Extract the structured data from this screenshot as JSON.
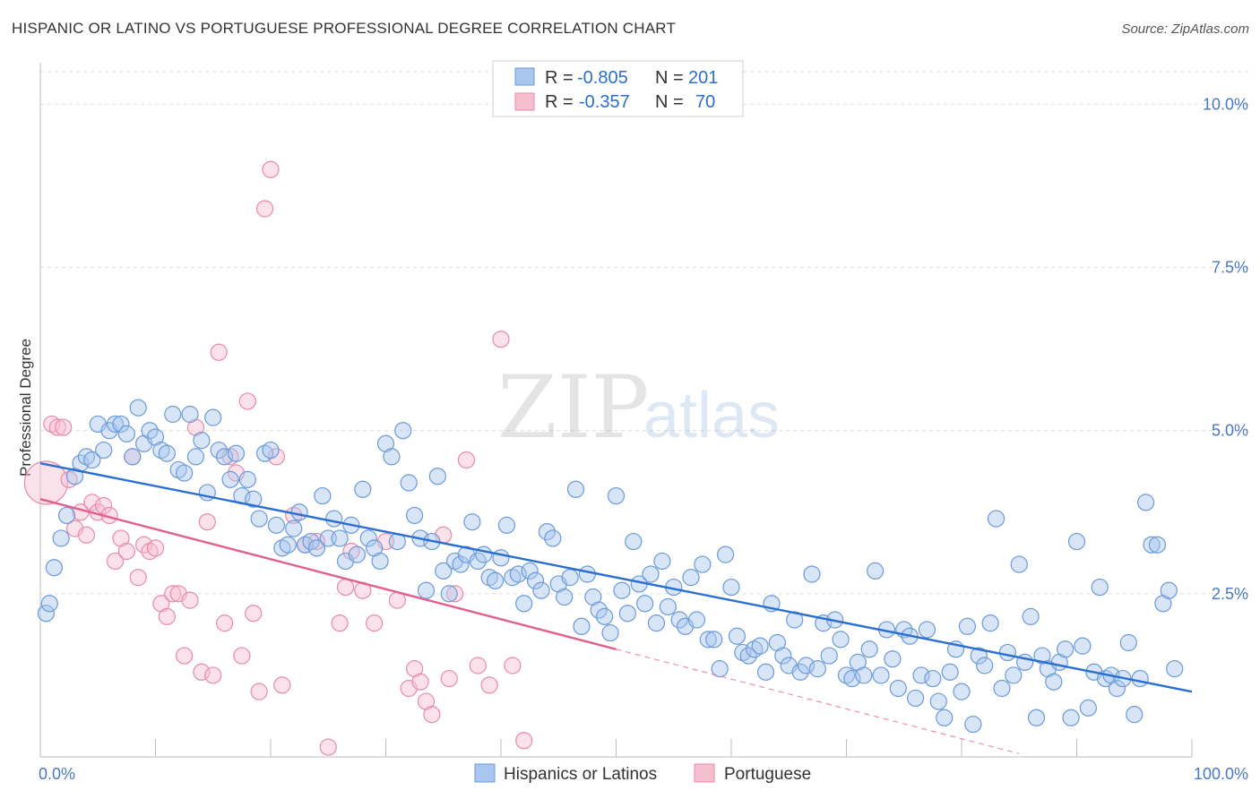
{
  "title": "HISPANIC OR LATINO VS PORTUGUESE PROFESSIONAL DEGREE CORRELATION CHART",
  "source": "Source: ZipAtlas.com",
  "watermark": {
    "zip": "ZIP",
    "atlas": "atlas"
  },
  "colors": {
    "blue_fill": "#a9c6ee",
    "blue_stroke": "#6a9ad8",
    "blue_line": "#2a6fcf",
    "pink_fill": "#f6bfd0",
    "pink_stroke": "#e88aa8",
    "pink_line": "#e0608e",
    "grid": "#dddddd",
    "axis_label": "#4a78c7"
  },
  "legend": {
    "rows": [
      {
        "r_label": "R =",
        "r_value": "-0.805",
        "n_label": "N =",
        "n_value": "201"
      },
      {
        "r_label": "R =",
        "r_value": "-0.357",
        "n_label": "N =",
        "n_value": "70"
      }
    ]
  },
  "bottom_legend": {
    "series1": "Hispanics or Latinos",
    "series2": "Portuguese"
  },
  "chart_data": {
    "type": "scatter",
    "ylabel": "Professional Degree",
    "xlabel": "",
    "x_tick_labels": [
      "0.0%",
      "100.0%"
    ],
    "y_tick_labels": [
      "2.5%",
      "5.0%",
      "7.5%",
      "10.0%"
    ],
    "y_ticks": [
      2.5,
      5.0,
      7.5,
      10.0
    ],
    "xlim": [
      0,
      100
    ],
    "ylim": [
      0,
      10.5
    ],
    "grid": true,
    "legend_position": "top-center",
    "series": [
      {
        "name": "Hispanics or Latinos",
        "r": -0.805,
        "n": 201,
        "trend": {
          "x": [
            0,
            100
          ],
          "y": [
            4.5,
            1.0
          ]
        },
        "points": [
          [
            0.5,
            2.2
          ],
          [
            0.8,
            2.35
          ],
          [
            1.2,
            2.9
          ],
          [
            1.8,
            3.35
          ],
          [
            2.3,
            3.7
          ],
          [
            3,
            4.3
          ],
          [
            3.5,
            4.5
          ],
          [
            4,
            4.6
          ],
          [
            4.5,
            4.55
          ],
          [
            5,
            5.1
          ],
          [
            5.5,
            4.7
          ],
          [
            6,
            5.0
          ],
          [
            6.5,
            5.1
          ],
          [
            7,
            5.1
          ],
          [
            7.5,
            4.95
          ],
          [
            8,
            4.6
          ],
          [
            8.5,
            5.35
          ],
          [
            9,
            4.8
          ],
          [
            9.5,
            5.0
          ],
          [
            10,
            4.9
          ],
          [
            10.5,
            4.7
          ],
          [
            11,
            4.65
          ],
          [
            11.5,
            5.25
          ],
          [
            12,
            4.4
          ],
          [
            12.5,
            4.35
          ],
          [
            13,
            5.25
          ],
          [
            13.5,
            4.6
          ],
          [
            14,
            4.85
          ],
          [
            14.5,
            4.05
          ],
          [
            15,
            5.2
          ],
          [
            15.5,
            4.7
          ],
          [
            16,
            4.6
          ],
          [
            16.5,
            4.25
          ],
          [
            17,
            4.65
          ],
          [
            17.5,
            4.0
          ],
          [
            18,
            4.25
          ],
          [
            18.5,
            3.95
          ],
          [
            19,
            3.65
          ],
          [
            19.5,
            4.65
          ],
          [
            20,
            4.7
          ],
          [
            20.5,
            3.55
          ],
          [
            21,
            3.2
          ],
          [
            21.5,
            3.25
          ],
          [
            22,
            3.5
          ],
          [
            22.5,
            3.75
          ],
          [
            23,
            3.25
          ],
          [
            23.5,
            3.3
          ],
          [
            24,
            3.2
          ],
          [
            24.5,
            4.0
          ],
          [
            25,
            3.35
          ],
          [
            25.5,
            3.65
          ],
          [
            26,
            3.35
          ],
          [
            26.5,
            3.0
          ],
          [
            27,
            3.55
          ],
          [
            27.5,
            3.1
          ],
          [
            28,
            4.1
          ],
          [
            28.5,
            3.35
          ],
          [
            29,
            3.2
          ],
          [
            29.5,
            3.0
          ],
          [
            30,
            4.8
          ],
          [
            30.5,
            4.6
          ],
          [
            31,
            3.3
          ],
          [
            31.5,
            5.0
          ],
          [
            32,
            4.2
          ],
          [
            32.5,
            3.7
          ],
          [
            33,
            3.35
          ],
          [
            33.5,
            2.55
          ],
          [
            34,
            3.3
          ],
          [
            34.5,
            4.3
          ],
          [
            35,
            2.85
          ],
          [
            35.5,
            2.5
          ],
          [
            36,
            3.0
          ],
          [
            36.5,
            2.95
          ],
          [
            37,
            3.1
          ],
          [
            37.5,
            3.6
          ],
          [
            38,
            3.0
          ],
          [
            38.5,
            3.1
          ],
          [
            39,
            2.75
          ],
          [
            39.5,
            2.7
          ],
          [
            40,
            3.05
          ],
          [
            40.5,
            3.55
          ],
          [
            41,
            2.75
          ],
          [
            41.5,
            2.8
          ],
          [
            42,
            2.35
          ],
          [
            42.5,
            2.85
          ],
          [
            43,
            2.7
          ],
          [
            43.5,
            2.55
          ],
          [
            44,
            3.45
          ],
          [
            44.5,
            3.35
          ],
          [
            45,
            2.65
          ],
          [
            45.5,
            2.45
          ],
          [
            46,
            2.75
          ],
          [
            46.5,
            4.1
          ],
          [
            47,
            2.0
          ],
          [
            47.5,
            2.8
          ],
          [
            48,
            2.45
          ],
          [
            48.5,
            2.25
          ],
          [
            49,
            2.15
          ],
          [
            49.5,
            1.9
          ],
          [
            50,
            4.0
          ],
          [
            50.5,
            2.55
          ],
          [
            51,
            2.2
          ],
          [
            51.5,
            3.3
          ],
          [
            52,
            2.65
          ],
          [
            52.5,
            2.35
          ],
          [
            53,
            2.8
          ],
          [
            53.5,
            2.05
          ],
          [
            54,
            3.0
          ],
          [
            54.5,
            2.3
          ],
          [
            55,
            2.6
          ],
          [
            55.5,
            2.1
          ],
          [
            56,
            2.0
          ],
          [
            56.5,
            2.75
          ],
          [
            57,
            2.1
          ],
          [
            57.5,
            2.95
          ],
          [
            58,
            1.8
          ],
          [
            58.5,
            1.8
          ],
          [
            59,
            1.35
          ],
          [
            59.5,
            3.1
          ],
          [
            60,
            2.6
          ],
          [
            60.5,
            1.85
          ],
          [
            61,
            1.6
          ],
          [
            61.5,
            1.55
          ],
          [
            62,
            1.65
          ],
          [
            62.5,
            1.7
          ],
          [
            63,
            1.3
          ],
          [
            63.5,
            2.35
          ],
          [
            64,
            1.75
          ],
          [
            64.5,
            1.55
          ],
          [
            65,
            1.4
          ],
          [
            65.5,
            2.1
          ],
          [
            66,
            1.3
          ],
          [
            66.5,
            1.4
          ],
          [
            67,
            2.8
          ],
          [
            67.5,
            1.35
          ],
          [
            68,
            2.05
          ],
          [
            68.5,
            1.55
          ],
          [
            69,
            2.1
          ],
          [
            69.5,
            1.8
          ],
          [
            70,
            1.25
          ],
          [
            70.5,
            1.2
          ],
          [
            71,
            1.45
          ],
          [
            71.5,
            1.25
          ],
          [
            72,
            1.65
          ],
          [
            72.5,
            2.85
          ],
          [
            73,
            1.25
          ],
          [
            73.5,
            1.95
          ],
          [
            74,
            1.5
          ],
          [
            74.5,
            1.05
          ],
          [
            75,
            1.95
          ],
          [
            75.5,
            1.85
          ],
          [
            76,
            0.9
          ],
          [
            76.5,
            1.25
          ],
          [
            77,
            1.95
          ],
          [
            77.5,
            1.2
          ],
          [
            78,
            0.85
          ],
          [
            78.5,
            0.6
          ],
          [
            79,
            1.3
          ],
          [
            79.5,
            1.65
          ],
          [
            80,
            1.0
          ],
          [
            80.5,
            2.0
          ],
          [
            81,
            0.5
          ],
          [
            81.5,
            1.55
          ],
          [
            82,
            1.4
          ],
          [
            82.5,
            2.05
          ],
          [
            83,
            3.65
          ],
          [
            83.5,
            1.05
          ],
          [
            84,
            1.6
          ],
          [
            84.5,
            1.25
          ],
          [
            85,
            2.95
          ],
          [
            85.5,
            1.45
          ],
          [
            86,
            2.15
          ],
          [
            86.5,
            0.6
          ],
          [
            87,
            1.55
          ],
          [
            87.5,
            1.35
          ],
          [
            88,
            1.15
          ],
          [
            88.5,
            1.45
          ],
          [
            89,
            1.65
          ],
          [
            89.5,
            0.6
          ],
          [
            90,
            3.3
          ],
          [
            90.5,
            1.7
          ],
          [
            91,
            0.75
          ],
          [
            91.5,
            1.3
          ],
          [
            92,
            2.6
          ],
          [
            92.5,
            1.2
          ],
          [
            93,
            1.25
          ],
          [
            93.5,
            1.05
          ],
          [
            94,
            1.2
          ],
          [
            94.5,
            1.75
          ],
          [
            95,
            0.65
          ],
          [
            95.5,
            1.2
          ],
          [
            96,
            3.9
          ],
          [
            96.5,
            3.25
          ],
          [
            97,
            3.25
          ],
          [
            97.5,
            2.35
          ],
          [
            98,
            2.55
          ],
          [
            98.5,
            1.35
          ]
        ]
      },
      {
        "name": "Portuguese",
        "r": -0.357,
        "n": 70,
        "trend": {
          "x": [
            0,
            50
          ],
          "y": [
            3.95,
            1.65
          ]
        },
        "trend_dashed": {
          "x": [
            50,
            85
          ],
          "y": [
            1.65,
            0.05
          ]
        },
        "points": [
          [
            0.5,
            4.2
          ],
          [
            1,
            5.1
          ],
          [
            1.5,
            5.05
          ],
          [
            2,
            5.05
          ],
          [
            2.5,
            4.25
          ],
          [
            3,
            3.5
          ],
          [
            3.5,
            3.75
          ],
          [
            4,
            3.4
          ],
          [
            4.5,
            3.9
          ],
          [
            5,
            3.75
          ],
          [
            5.5,
            3.85
          ],
          [
            6,
            3.7
          ],
          [
            6.5,
            3.0
          ],
          [
            7,
            3.35
          ],
          [
            7.5,
            3.15
          ],
          [
            8,
            4.6
          ],
          [
            8.5,
            2.75
          ],
          [
            9,
            3.25
          ],
          [
            9.5,
            3.15
          ],
          [
            10,
            3.2
          ],
          [
            10.5,
            2.35
          ],
          [
            11,
            2.15
          ],
          [
            11.5,
            2.5
          ],
          [
            12,
            2.5
          ],
          [
            12.5,
            1.55
          ],
          [
            13,
            2.4
          ],
          [
            13.5,
            5.05
          ],
          [
            14,
            1.3
          ],
          [
            14.5,
            3.6
          ],
          [
            15,
            1.25
          ],
          [
            15.5,
            6.2
          ],
          [
            16,
            2.05
          ],
          [
            16.5,
            4.6
          ],
          [
            17,
            4.35
          ],
          [
            17.5,
            1.55
          ],
          [
            18,
            5.45
          ],
          [
            18.5,
            2.2
          ],
          [
            19,
            1.0
          ],
          [
            19.5,
            8.4
          ],
          [
            20,
            9.0
          ],
          [
            20.5,
            4.6
          ],
          [
            21,
            1.1
          ],
          [
            22,
            3.7
          ],
          [
            23,
            3.25
          ],
          [
            24,
            3.3
          ],
          [
            25,
            0.15
          ],
          [
            26,
            2.05
          ],
          [
            26.5,
            2.6
          ],
          [
            27,
            3.15
          ],
          [
            28,
            2.55
          ],
          [
            29,
            2.05
          ],
          [
            30,
            3.3
          ],
          [
            31,
            2.4
          ],
          [
            32,
            1.05
          ],
          [
            32.5,
            1.35
          ],
          [
            33,
            1.15
          ],
          [
            33.5,
            0.85
          ],
          [
            34,
            0.65
          ],
          [
            35,
            3.4
          ],
          [
            35.5,
            1.2
          ],
          [
            36,
            2.5
          ],
          [
            37,
            4.55
          ],
          [
            38,
            1.4
          ],
          [
            39,
            1.1
          ],
          [
            40,
            6.4
          ],
          [
            41,
            1.4
          ],
          [
            42,
            0.25
          ]
        ]
      }
    ]
  }
}
